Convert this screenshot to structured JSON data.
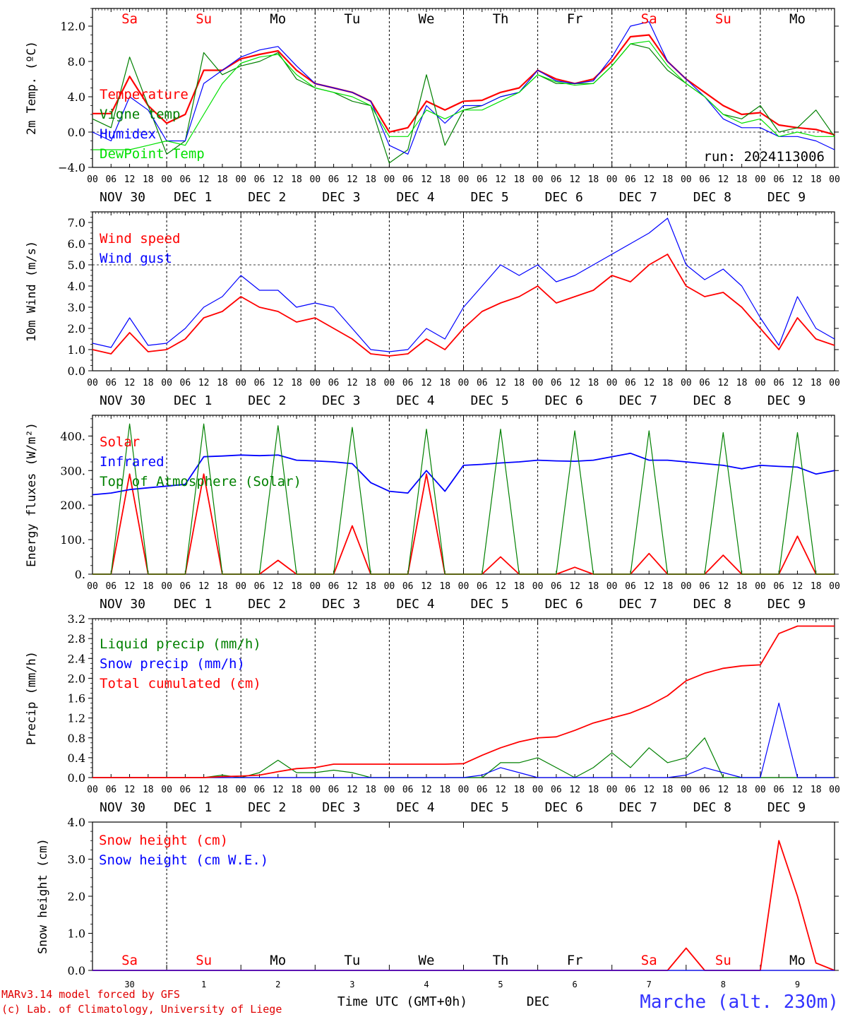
{
  "colors": {
    "red": "#ff0000",
    "green": "#008000",
    "blue": "#0000ff",
    "lightgreen": "#00e000",
    "black": "#000000"
  },
  "run_label": "run: 2024113006",
  "hour_labels": [
    "00",
    "06",
    "12",
    "18"
  ],
  "date_labels": [
    "NOV 30",
    "DEC  1",
    "DEC  2",
    "DEC  3",
    "DEC  4",
    "DEC  5",
    "DEC  6",
    "DEC  7",
    "DEC  8",
    "DEC  9"
  ],
  "day_labels": [
    {
      "text": "Sa",
      "color": "#ff0000"
    },
    {
      "text": "Su",
      "color": "#ff0000"
    },
    {
      "text": "Mo",
      "color": "#000000"
    },
    {
      "text": "Tu",
      "color": "#000000"
    },
    {
      "text": "We",
      "color": "#000000"
    },
    {
      "text": "Th",
      "color": "#000000"
    },
    {
      "text": "Fr",
      "color": "#000000"
    },
    {
      "text": "Sa",
      "color": "#ff0000"
    },
    {
      "text": "Su",
      "color": "#ff0000"
    },
    {
      "text": "Mo",
      "color": "#000000"
    }
  ],
  "bottom_day_numbers": [
    "30",
    "1",
    "2",
    "3",
    "4",
    "5",
    "6",
    "7",
    "8",
    "9"
  ],
  "footer": {
    "line1": "MARv3.14 model forced by GFS",
    "line2": "(c) Lab. of Climatology, University of Liege",
    "xlabel": "Time UTC (GMT+0h)",
    "month": "DEC",
    "station": "Marche (alt. 230m)"
  },
  "chart_data": [
    {
      "type": "line",
      "ylabel": "2m Temp. (ºC)",
      "ylim": [
        -4,
        14
      ],
      "yticks": [
        -4,
        0,
        4,
        8,
        12
      ],
      "ytick_labels": [
        "−4.0",
        "0.0",
        "4.0",
        "8.0",
        "12.0"
      ],
      "ref_line": 0,
      "x_hours": [
        0,
        6,
        12,
        18,
        24,
        30,
        36,
        42,
        48,
        54,
        60,
        66,
        72,
        78,
        84,
        90,
        96,
        102,
        108,
        114,
        120,
        126,
        132,
        138,
        144,
        150,
        156,
        162,
        168,
        174,
        180,
        186,
        192,
        198,
        204,
        210,
        216,
        222,
        228,
        234,
        240
      ],
      "series": [
        {
          "name": "Temperature",
          "color": "#ff0000",
          "width": 2.2,
          "values": [
            2.1,
            2.1,
            6.3,
            3.0,
            1.0,
            2.0,
            7.0,
            7.0,
            8.3,
            8.8,
            9.2,
            7.0,
            5.5,
            5.0,
            4.5,
            3.5,
            0.0,
            0.5,
            3.5,
            2.5,
            3.5,
            3.6,
            4.5,
            5.0,
            7.0,
            6.0,
            5.5,
            6.0,
            8.0,
            10.8,
            11.0,
            8.0,
            6.0,
            4.5,
            3.0,
            2.0,
            2.2,
            0.8,
            0.5,
            0.3,
            -0.3
          ]
        },
        {
          "name": "Vigne temp",
          "color": "#008000",
          "width": 1.2,
          "values": [
            1.5,
            0.5,
            8.5,
            3.0,
            -2.5,
            -1.0,
            9.0,
            6.5,
            7.5,
            8.0,
            9.0,
            6.0,
            5.0,
            4.5,
            3.5,
            3.0,
            -3.5,
            -2.0,
            6.5,
            -1.5,
            2.5,
            3.0,
            4.0,
            4.5,
            6.5,
            5.5,
            5.5,
            5.5,
            7.5,
            10.0,
            9.5,
            7.0,
            5.5,
            4.0,
            2.0,
            1.5,
            3.0,
            0.0,
            0.5,
            2.5,
            -0.5
          ]
        },
        {
          "name": "Humidex",
          "color": "#0000ff",
          "width": 1.2,
          "values": [
            0.0,
            -1.0,
            4.0,
            2.5,
            -1.0,
            -1.0,
            5.5,
            7.0,
            8.5,
            9.3,
            9.7,
            7.5,
            5.5,
            5.0,
            4.5,
            3.5,
            -1.5,
            -2.5,
            3.0,
            1.0,
            3.0,
            3.0,
            4.0,
            4.5,
            7.0,
            5.8,
            5.5,
            5.8,
            8.5,
            12.0,
            12.5,
            8.0,
            6.0,
            4.0,
            1.5,
            0.5,
            0.5,
            -0.5,
            -0.5,
            -1.0,
            -2.0
          ]
        },
        {
          "name": "DewPoint Temp",
          "color": "#00e000",
          "width": 1.2,
          "values": [
            -2.0,
            -2.0,
            -2.0,
            -1.5,
            -1.0,
            -1.5,
            2.0,
            5.5,
            7.8,
            8.5,
            8.8,
            6.5,
            5.0,
            4.5,
            4.0,
            3.0,
            -0.5,
            -0.5,
            2.5,
            1.5,
            2.5,
            2.5,
            3.5,
            4.5,
            6.5,
            5.7,
            5.3,
            5.5,
            7.5,
            10.0,
            10.3,
            7.5,
            5.5,
            4.0,
            2.0,
            1.0,
            1.5,
            -0.5,
            0.0,
            -0.5,
            -0.5
          ]
        }
      ]
    },
    {
      "type": "line",
      "ylabel": "10m Wind (m/s)",
      "ylim": [
        0,
        7.5
      ],
      "yticks": [
        0,
        1,
        2,
        3,
        4,
        5,
        6,
        7
      ],
      "ytick_labels": [
        "0.0",
        "1.0",
        "2.0",
        "3.0",
        "4.0",
        "5.0",
        "6.0",
        "7.0"
      ],
      "ref_line": 5,
      "x_hours": [
        0,
        6,
        12,
        18,
        24,
        30,
        36,
        42,
        48,
        54,
        60,
        66,
        72,
        78,
        84,
        90,
        96,
        102,
        108,
        114,
        120,
        126,
        132,
        138,
        144,
        150,
        156,
        162,
        168,
        174,
        180,
        186,
        192,
        198,
        204,
        210,
        216,
        222,
        228,
        234,
        240
      ],
      "series": [
        {
          "name": "Wind speed",
          "color": "#ff0000",
          "width": 1.8,
          "values": [
            1.0,
            0.8,
            1.8,
            0.9,
            1.0,
            1.5,
            2.5,
            2.8,
            3.5,
            3.0,
            2.8,
            2.3,
            2.5,
            2.0,
            1.5,
            0.8,
            0.7,
            0.8,
            1.5,
            1.0,
            2.0,
            2.8,
            3.2,
            3.5,
            4.0,
            3.2,
            3.5,
            3.8,
            4.5,
            4.2,
            5.0,
            5.5,
            4.0,
            3.5,
            3.7,
            3.0,
            2.0,
            1.0,
            2.5,
            1.5,
            1.2
          ]
        },
        {
          "name": "Wind gust",
          "color": "#0000ff",
          "width": 1.2,
          "values": [
            1.3,
            1.1,
            2.5,
            1.2,
            1.3,
            2.0,
            3.0,
            3.5,
            4.5,
            3.8,
            3.8,
            3.0,
            3.2,
            3.0,
            2.0,
            1.0,
            0.9,
            1.0,
            2.0,
            1.5,
            3.0,
            4.0,
            5.0,
            4.5,
            5.0,
            4.2,
            4.5,
            5.0,
            5.5,
            6.0,
            6.5,
            7.2,
            5.0,
            4.3,
            4.8,
            4.0,
            2.5,
            1.2,
            3.5,
            2.0,
            1.5
          ]
        }
      ]
    },
    {
      "type": "line",
      "ylabel": "Energy fluxes (W/m²)",
      "ylim": [
        0,
        460
      ],
      "yticks": [
        0,
        100,
        200,
        300,
        400
      ],
      "ytick_labels": [
        "0.",
        "100.",
        "200.",
        "300.",
        "400."
      ],
      "x_hours": [
        0,
        6,
        12,
        18,
        24,
        30,
        36,
        42,
        48,
        54,
        60,
        66,
        72,
        78,
        84,
        90,
        96,
        102,
        108,
        114,
        120,
        126,
        132,
        138,
        144,
        150,
        156,
        162,
        168,
        174,
        180,
        186,
        192,
        198,
        204,
        210,
        216,
        222,
        228,
        234,
        240
      ],
      "series": [
        {
          "name": "Solar",
          "color": "#ff0000",
          "width": 1.8,
          "values": [
            0,
            0,
            290,
            0,
            0,
            0,
            290,
            0,
            0,
            0,
            40,
            0,
            0,
            0,
            140,
            0,
            0,
            0,
            290,
            0,
            0,
            0,
            50,
            0,
            0,
            0,
            20,
            0,
            0,
            0,
            60,
            0,
            0,
            0,
            55,
            0,
            0,
            0,
            110,
            0,
            0
          ]
        },
        {
          "name": "Infrared",
          "color": "#0000ff",
          "width": 1.8,
          "values": [
            230,
            235,
            245,
            250,
            255,
            260,
            340,
            342,
            345,
            343,
            345,
            330,
            328,
            325,
            320,
            265,
            240,
            235,
            300,
            240,
            315,
            318,
            322,
            325,
            330,
            328,
            327,
            330,
            340,
            350,
            330,
            330,
            325,
            320,
            315,
            305,
            315,
            312,
            310,
            290,
            300
          ]
        },
        {
          "name": "Top of Atmosphere (Solar)",
          "color": "#008000",
          "width": 1.2,
          "values": [
            0,
            0,
            435,
            0,
            0,
            0,
            435,
            0,
            0,
            0,
            430,
            0,
            0,
            0,
            425,
            0,
            0,
            0,
            420,
            0,
            0,
            0,
            420,
            0,
            0,
            0,
            415,
            0,
            0,
            0,
            415,
            0,
            0,
            0,
            410,
            0,
            0,
            0,
            410,
            0,
            0
          ]
        }
      ]
    },
    {
      "type": "line",
      "ylabel": "Precip (mm/h)",
      "ylim": [
        0,
        3.2
      ],
      "yticks": [
        0,
        0.4,
        0.8,
        1.2,
        1.6,
        2.0,
        2.4,
        2.8,
        3.2
      ],
      "ytick_labels": [
        "0.0",
        "0.4",
        "0.8",
        "1.2",
        "1.6",
        "2.0",
        "2.4",
        "2.8",
        "3.2"
      ],
      "x_hours": [
        0,
        6,
        12,
        18,
        24,
        30,
        36,
        42,
        48,
        54,
        60,
        66,
        72,
        78,
        84,
        90,
        96,
        102,
        108,
        114,
        120,
        126,
        132,
        138,
        144,
        150,
        156,
        162,
        168,
        174,
        180,
        186,
        192,
        198,
        204,
        210,
        216,
        222,
        228,
        234,
        240
      ],
      "series": [
        {
          "name": "Liquid precip (mm/h)",
          "color": "#008000",
          "width": 1.2,
          "values": [
            0,
            0,
            0,
            0,
            0,
            0,
            0,
            0.05,
            0,
            0.1,
            0.35,
            0.1,
            0.1,
            0.15,
            0.1,
            0,
            0,
            0,
            0,
            0,
            0,
            0,
            0.3,
            0.3,
            0.4,
            0.2,
            0,
            0.2,
            0.5,
            0.2,
            0.6,
            0.3,
            0.4,
            0.8,
            0,
            0,
            0,
            0,
            0,
            0,
            0
          ]
        },
        {
          "name": "Snow precip (mm/h)",
          "color": "#0000ff",
          "width": 1.2,
          "values": [
            0,
            0,
            0,
            0,
            0,
            0,
            0,
            0,
            0,
            0,
            0,
            0,
            0,
            0,
            0,
            0,
            0,
            0,
            0,
            0,
            0,
            0.05,
            0.2,
            0.1,
            0,
            0,
            0,
            0,
            0,
            0,
            0,
            0,
            0.05,
            0.2,
            0.1,
            0,
            0,
            1.5,
            0,
            0,
            0
          ]
        },
        {
          "name": "Total cumulated (cm)",
          "color": "#ff0000",
          "width": 1.8,
          "values": [
            0,
            0,
            0,
            0,
            0,
            0,
            0,
            0.02,
            0.03,
            0.05,
            0.12,
            0.18,
            0.2,
            0.27,
            0.27,
            0.27,
            0.27,
            0.27,
            0.27,
            0.27,
            0.28,
            0.45,
            0.6,
            0.72,
            0.8,
            0.82,
            0.95,
            1.1,
            1.2,
            1.3,
            1.45,
            1.65,
            1.95,
            2.1,
            2.2,
            2.25,
            2.27,
            2.9,
            3.05,
            3.05,
            3.05
          ]
        }
      ]
    },
    {
      "type": "line",
      "ylabel": "Snow height (cm)",
      "ylim": [
        0,
        4
      ],
      "yticks": [
        0,
        1,
        2,
        3,
        4
      ],
      "ytick_labels": [
        "0.0",
        "1.0",
        "2.0",
        "3.0",
        "4.0"
      ],
      "x_hours": [
        0,
        6,
        12,
        18,
        24,
        30,
        36,
        42,
        48,
        54,
        60,
        66,
        72,
        78,
        84,
        90,
        96,
        102,
        108,
        114,
        120,
        126,
        132,
        138,
        144,
        150,
        156,
        162,
        168,
        174,
        180,
        186,
        192,
        198,
        204,
        210,
        216,
        222,
        228,
        234,
        240
      ],
      "series": [
        {
          "name": "Snow height (cm)",
          "color": "#ff0000",
          "width": 1.8,
          "values": [
            0,
            0,
            0,
            0,
            0,
            0,
            0,
            0,
            0,
            0,
            0,
            0,
            0,
            0,
            0,
            0,
            0,
            0,
            0,
            0,
            0,
            0,
            0,
            0,
            0,
            0,
            0,
            0,
            0,
            0,
            0,
            0,
            0.6,
            0,
            0,
            0,
            0,
            3.5,
            2.0,
            0.2,
            0
          ]
        },
        {
          "name": "Snow height (cm W.E.)",
          "color": "#0000ff",
          "width": 1.2,
          "values": [
            0,
            0,
            0,
            0,
            0,
            0,
            0,
            0,
            0,
            0,
            0,
            0,
            0,
            0,
            0,
            0,
            0,
            0,
            0,
            0,
            0,
            0,
            0,
            0,
            0,
            0,
            0,
            0,
            0,
            0,
            0,
            0,
            0,
            0,
            0,
            0,
            0,
            0,
            0,
            0,
            0
          ]
        }
      ]
    }
  ]
}
